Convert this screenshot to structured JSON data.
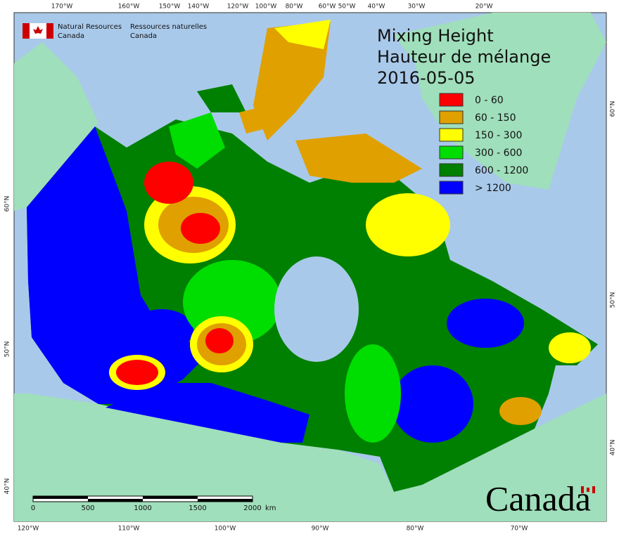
{
  "header": {
    "department_en": [
      "Natural Resources",
      "Canada"
    ],
    "department_fr": [
      "Ressources naturelles",
      "Canada"
    ]
  },
  "title": [
    "Mixing Height",
    "Hauteur de mélange",
    "2016-05-05"
  ],
  "legend": [
    {
      "label": "0 - 60",
      "color": "#ff0000"
    },
    {
      "label": "60 - 150",
      "color": "#e0a000"
    },
    {
      "label": "150 - 300",
      "color": "#ffff00"
    },
    {
      "label": "300 - 600",
      "color": "#00dd00"
    },
    {
      "label": "600 - 1200",
      "color": "#008000"
    },
    {
      "label": "> 1200",
      "color": "#0000ff"
    }
  ],
  "graticule": {
    "top": [
      "170°W",
      "160°W",
      "150°W",
      "140°W",
      "120°W",
      "100°W",
      "80°W",
      "60°W",
      "50°W",
      "40°W",
      "30°W",
      "20°W"
    ],
    "bottom": [
      "120°W",
      "110°W",
      "100°W",
      "90°W",
      "80°W",
      "70°W"
    ],
    "left": [
      "60°N",
      "50°N",
      "40°N"
    ],
    "right": [
      "60°N",
      "50°N",
      "40°N"
    ]
  },
  "scale_bar": {
    "labels": [
      "0",
      "500",
      "1000",
      "1500",
      "2000"
    ],
    "unit": "km"
  },
  "wordmark": "Canada"
}
